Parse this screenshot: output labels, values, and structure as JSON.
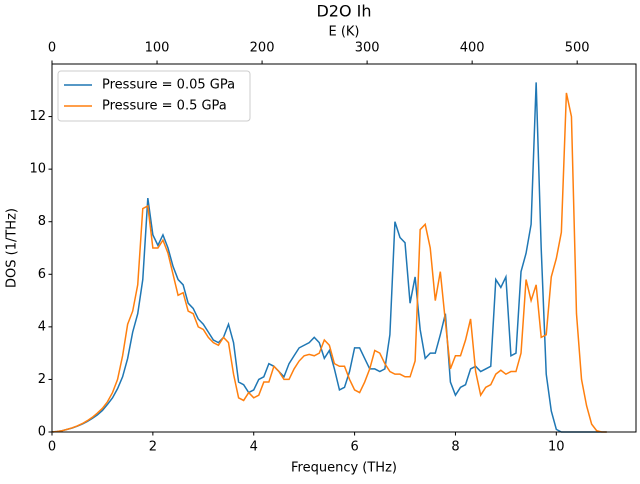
{
  "chart_data": {
    "type": "line",
    "title": "D2O Ih",
    "xlabel": "Frequency (THz)",
    "ylabel": "DOS (1/THz)",
    "x2label": "E (K)",
    "xlim": [
      0,
      11.58
    ],
    "xticks": [
      0,
      2,
      4,
      6,
      8,
      10
    ],
    "x2lim": [
      0,
      556
    ],
    "x2ticks": [
      0,
      100,
      200,
      300,
      400,
      500
    ],
    "ylim": [
      0,
      14.0
    ],
    "yticks": [
      0,
      2,
      4,
      6,
      8,
      10,
      12
    ],
    "legend": "upper left",
    "grid": false,
    "x": [
      0,
      0.1,
      0.2,
      0.3,
      0.4,
      0.5,
      0.6,
      0.7,
      0.8,
      0.9,
      1.0,
      1.1,
      1.2,
      1.3,
      1.4,
      1.5,
      1.6,
      1.7,
      1.8,
      1.9,
      2.0,
      2.1,
      2.2,
      2.3,
      2.4,
      2.5,
      2.6,
      2.7,
      2.8,
      2.9,
      3.0,
      3.1,
      3.2,
      3.3,
      3.4,
      3.5,
      3.6,
      3.7,
      3.8,
      3.9,
      4.0,
      4.1,
      4.2,
      4.3,
      4.4,
      4.5,
      4.6,
      4.7,
      4.8,
      4.9,
      5.0,
      5.1,
      5.2,
      5.3,
      5.4,
      5.5,
      5.6,
      5.7,
      5.8,
      5.9,
      6.0,
      6.1,
      6.2,
      6.3,
      6.4,
      6.5,
      6.6,
      6.7,
      6.8,
      6.9,
      7.0,
      7.1,
      7.2,
      7.3,
      7.4,
      7.5,
      7.6,
      7.7,
      7.8,
      7.9,
      8.0,
      8.1,
      8.2,
      8.3,
      8.4,
      8.5,
      8.6,
      8.7,
      8.8,
      8.9,
      9.0,
      9.1,
      9.2,
      9.3,
      9.4,
      9.5,
      9.6,
      9.7,
      9.8,
      9.9,
      10.0,
      10.1,
      10.2,
      10.3,
      10.4,
      10.5,
      10.6,
      10.7,
      10.8,
      10.9,
      11.0
    ],
    "series": [
      {
        "name": "Pressure = 0.05 GPa",
        "color": "#1f77b4",
        "values": [
          0,
          0.02,
          0.05,
          0.1,
          0.15,
          0.22,
          0.3,
          0.4,
          0.52,
          0.65,
          0.82,
          1.05,
          1.3,
          1.65,
          2.1,
          2.8,
          3.8,
          4.5,
          5.8,
          8.9,
          7.5,
          7.1,
          7.5,
          7.0,
          6.3,
          5.8,
          5.6,
          4.9,
          4.7,
          4.3,
          4.1,
          3.8,
          3.5,
          3.4,
          3.6,
          4.1,
          3.4,
          1.9,
          1.8,
          1.5,
          1.6,
          2.0,
          2.1,
          2.6,
          2.5,
          2.3,
          2.1,
          2.6,
          2.9,
          3.2,
          3.3,
          3.4,
          3.6,
          3.4,
          2.8,
          3.1,
          2.4,
          1.6,
          1.7,
          2.3,
          3.2,
          3.2,
          2.8,
          2.4,
          2.4,
          2.3,
          2.4,
          3.7,
          8.0,
          7.4,
          7.2,
          4.9,
          5.9,
          3.9,
          2.8,
          3.0,
          3.0,
          3.7,
          4.5,
          1.9,
          1.4,
          1.7,
          1.8,
          2.4,
          2.5,
          2.3,
          2.4,
          2.5,
          5.8,
          5.5,
          5.9,
          2.9,
          3.0,
          6.1,
          6.8,
          7.9,
          13.3,
          7.0,
          2.2,
          0.8,
          0.1,
          0,
          0,
          0,
          0,
          0,
          0,
          0,
          0,
          0,
          0
        ]
      },
      {
        "name": "Pressure = 0.5 GPa",
        "color": "#ff7f0e",
        "values": [
          0,
          0.02,
          0.05,
          0.1,
          0.16,
          0.23,
          0.32,
          0.43,
          0.56,
          0.72,
          0.9,
          1.15,
          1.5,
          2.0,
          2.9,
          4.1,
          4.6,
          5.6,
          8.5,
          8.6,
          7.0,
          7.0,
          7.3,
          6.8,
          6.0,
          5.2,
          5.3,
          4.6,
          4.5,
          4.0,
          3.9,
          3.6,
          3.4,
          3.3,
          3.6,
          3.4,
          2.2,
          1.3,
          1.2,
          1.5,
          1.3,
          1.4,
          1.9,
          1.9,
          2.5,
          2.3,
          2.0,
          2.0,
          2.4,
          2.7,
          2.9,
          2.95,
          2.9,
          3.0,
          3.5,
          3.3,
          2.6,
          2.5,
          2.5,
          2.0,
          1.6,
          1.5,
          1.9,
          2.4,
          3.1,
          3.0,
          2.6,
          2.3,
          2.2,
          2.2,
          2.1,
          2.1,
          2.7,
          7.7,
          7.9,
          7.0,
          5.0,
          6.1,
          4.2,
          2.4,
          2.9,
          2.9,
          3.5,
          4.3,
          2.3,
          1.4,
          1.7,
          1.8,
          2.2,
          2.35,
          2.2,
          2.3,
          2.3,
          3.0,
          5.8,
          5.0,
          5.6,
          3.6,
          3.7,
          5.9,
          6.6,
          7.6,
          12.9,
          12.0,
          4.5,
          2.0,
          1.0,
          0.3,
          0.05,
          0,
          0
        ]
      }
    ]
  }
}
